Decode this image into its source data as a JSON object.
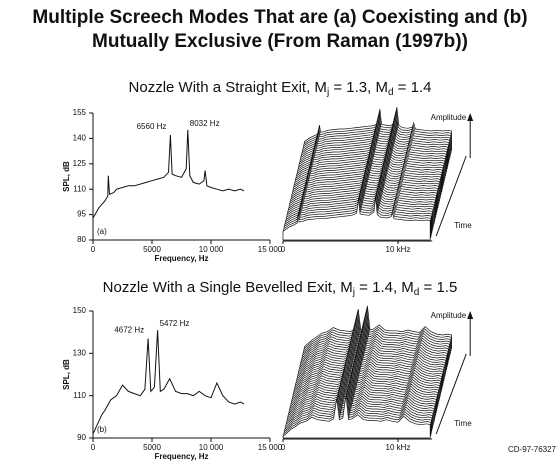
{
  "title": [
    "Multiple Screech Modes That are (a) Coexisting and (b)",
    "Mutually Exclusive (From Raman (1997b))"
  ],
  "figure_id": "CD-97-76327",
  "chart_data": [
    {
      "type": "line",
      "subtitle_parts": [
        "Nozzle With a Straight Exit, M",
        "j",
        " = 1.3, M",
        "d",
        " = 1.4"
      ],
      "xlabel": "Frequency, Hz",
      "ylabel": "SPL, dB",
      "x": [
        0,
        250,
        500,
        750,
        1000,
        1250,
        1300,
        1400,
        1750,
        2000,
        2500,
        3000,
        3500,
        4000,
        4500,
        5000,
        5500,
        6000,
        6400,
        6560,
        6700,
        7000,
        7500,
        7900,
        8032,
        8200,
        8500,
        9000,
        9400,
        9500,
        9650,
        10000,
        10500,
        11000,
        11500,
        12000,
        12500,
        12800
      ],
      "values": [
        93,
        96,
        99,
        101,
        103,
        106,
        118,
        107,
        108,
        110,
        111,
        112,
        112,
        113,
        114,
        115,
        116,
        117,
        120,
        142,
        119,
        118,
        117,
        122,
        145,
        118,
        114,
        113,
        115,
        121,
        112,
        111,
        110,
        109,
        110,
        109,
        110,
        109
      ],
      "color": "#111111",
      "xlim": [
        0,
        15000
      ],
      "xticks": [
        0,
        5000,
        {
          "value": 10000,
          "label": "10 000"
        },
        {
          "value": 15000,
          "label": "15 000"
        }
      ],
      "ylim": [
        80,
        155
      ],
      "yticks": [
        80,
        95,
        110,
        125,
        140,
        155
      ],
      "annotations": [
        "6560 Hz",
        "8032 Hz"
      ],
      "panel_label": "(a)",
      "waterfall_xticks": [
        {
          "value": 0,
          "label": "0"
        },
        {
          "value": 10000,
          "label": "10 kHz"
        }
      ],
      "amplitude_label": "Amplitude",
      "time_label": "Time"
    },
    {
      "type": "line",
      "subtitle_parts": [
        "Nozzle With a Single Bevelled Exit, M",
        "j",
        " = 1.4, M",
        "d",
        " = 1.5"
      ],
      "xlabel": "Frequency, Hz",
      "ylabel": "SPL, dB",
      "x": [
        0,
        250,
        500,
        750,
        1000,
        1500,
        2000,
        2500,
        3000,
        3500,
        4000,
        4400,
        4672,
        4900,
        5200,
        5472,
        5700,
        6000,
        6500,
        7000,
        7500,
        8000,
        8500,
        9000,
        9500,
        10000,
        10500,
        11000,
        11500,
        12000,
        12500,
        12800
      ],
      "values": [
        92,
        95,
        98,
        101,
        103,
        108,
        110,
        115,
        112,
        111,
        110,
        113,
        137,
        112,
        114,
        141,
        112,
        113,
        118,
        112,
        111,
        111,
        110,
        112,
        110,
        109,
        116,
        110,
        107,
        106,
        107,
        106
      ],
      "color": "#111111",
      "xlim": [
        0,
        15000
      ],
      "xticks": [
        0,
        5000,
        {
          "value": 10000,
          "label": "10 000"
        },
        {
          "value": 15000,
          "label": "15 000"
        }
      ],
      "ylim": [
        90,
        150
      ],
      "yticks": [
        90,
        110,
        130,
        150
      ],
      "annotations": [
        "4672 Hz",
        "5472 Hz"
      ],
      "panel_label": "(b)",
      "waterfall_xticks": [
        {
          "value": 0,
          "label": "0"
        },
        {
          "value": 10000,
          "label": "10 kHz"
        }
      ],
      "amplitude_label": "Amplitude",
      "time_label": "Time"
    }
  ]
}
